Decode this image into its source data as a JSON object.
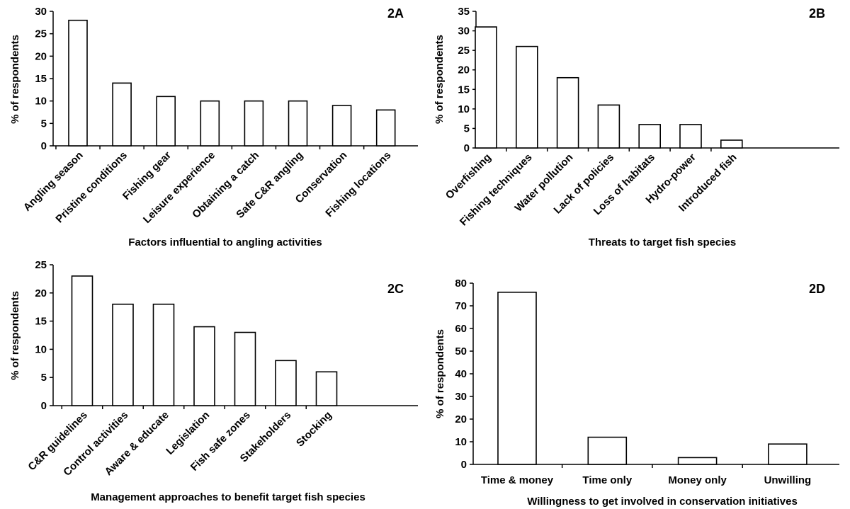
{
  "chart_data": [
    {
      "type": "bar",
      "panel": "2A",
      "categories": [
        "Angling season",
        "Pristine conditions",
        "Fishing gear",
        "Leisure experience",
        "Obtaining a catch",
        "Safe C&R angling",
        "Conservation",
        "Fishing locations"
      ],
      "values": [
        28,
        14,
        11,
        10,
        10,
        10,
        9,
        8
      ],
      "xlabel": "Factors influential to angling activities",
      "ylabel": "% of respondents",
      "ylim": [
        0,
        30
      ],
      "yticks": [
        0,
        5,
        10,
        15,
        20,
        25,
        30
      ],
      "grid": false
    },
    {
      "type": "bar",
      "panel": "2B",
      "categories": [
        "Overfishing",
        "Fishing techniques",
        "Water pollution",
        "Lack of policies",
        "Loss of habitats",
        "Hydro-power",
        "Introduced fish"
      ],
      "values": [
        31,
        26,
        18,
        11,
        6,
        6,
        2
      ],
      "xlabel": "Threats to target fish species",
      "ylabel": "% of respondents",
      "ylim": [
        0,
        35
      ],
      "yticks": [
        0,
        5,
        10,
        15,
        20,
        25,
        30,
        35
      ],
      "grid": false
    },
    {
      "type": "bar",
      "panel": "2C",
      "categories": [
        "C&R guidelines",
        "Control activities",
        "Aware & educate",
        "Legislation",
        "Fish safe zones",
        "Stakeholders",
        "Stocking"
      ],
      "values": [
        23,
        18,
        18,
        14,
        13,
        8,
        6
      ],
      "xlabel": "Management approaches to benefit target fish species",
      "ylabel": "% of respondents",
      "ylim": [
        0,
        25
      ],
      "yticks": [
        0,
        5,
        10,
        15,
        20,
        25
      ],
      "grid": false
    },
    {
      "type": "bar",
      "panel": "2D",
      "categories": [
        "Time & money",
        "Time only",
        "Money only",
        "Unwilling"
      ],
      "values": [
        76,
        12,
        3,
        9
      ],
      "xlabel": "Willingness to get involved in conservation initiatives",
      "ylabel": "% of respondents",
      "ylim": [
        0,
        80
      ],
      "yticks": [
        0,
        10,
        20,
        30,
        40,
        50,
        60,
        70,
        80
      ],
      "grid": false
    }
  ]
}
